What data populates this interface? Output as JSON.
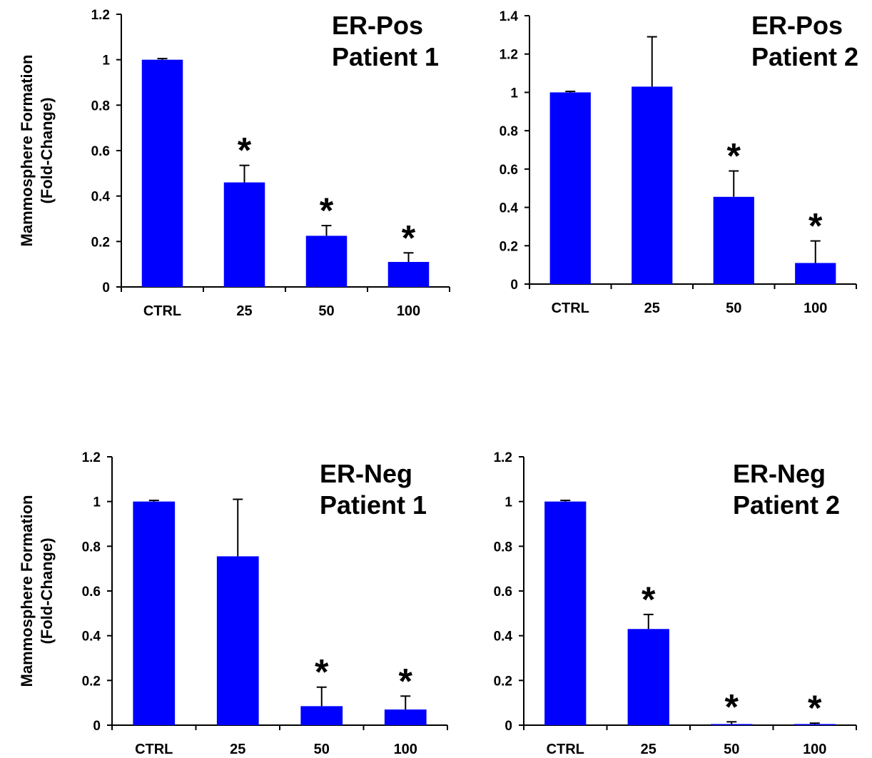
{
  "chart_data": [
    {
      "type": "bar",
      "title": [
        "ER-Pos",
        "Patient 1"
      ],
      "ylabel": [
        "Mammosphere Formation",
        "(Fold-Change)"
      ],
      "categories": [
        "CTRL",
        "25",
        "50",
        "100"
      ],
      "values": [
        1.0,
        0.46,
        0.225,
        0.11
      ],
      "errors": [
        0.005,
        0.075,
        0.045,
        0.04
      ],
      "significant": [
        false,
        true,
        true,
        true
      ],
      "marker": "*",
      "ylim": [
        0,
        1.2
      ],
      "yticks": [
        "0",
        "0.2",
        "0.4",
        "0.6",
        "0.8",
        "1",
        "1.2"
      ],
      "bar_color": "#0000ff"
    },
    {
      "type": "bar",
      "title": [
        "ER-Pos",
        "Patient 2"
      ],
      "ylabel": [],
      "categories": [
        "CTRL",
        "25",
        "50",
        "100"
      ],
      "values": [
        1.0,
        1.03,
        0.455,
        0.11
      ],
      "errors": [
        0.005,
        0.26,
        0.135,
        0.115
      ],
      "significant": [
        false,
        false,
        true,
        true
      ],
      "marker": "*",
      "ylim": [
        0,
        1.4
      ],
      "yticks": [
        "0",
        "0.2",
        "0.4",
        "0.6",
        "0.8",
        "1",
        "1.2",
        "1.4"
      ],
      "bar_color": "#0000ff"
    },
    {
      "type": "bar",
      "title": [
        "ER-Neg",
        "Patient 1"
      ],
      "ylabel": [
        "Mammosphere Formation",
        "(Fold-Change)"
      ],
      "categories": [
        "CTRL",
        "25",
        "50",
        "100"
      ],
      "values": [
        1.0,
        0.755,
        0.085,
        0.07
      ],
      "errors": [
        0.005,
        0.255,
        0.085,
        0.06
      ],
      "significant": [
        false,
        false,
        true,
        true
      ],
      "marker": "*",
      "ylim": [
        0,
        1.2
      ],
      "yticks": [
        "0",
        "0.2",
        "0.4",
        "0.6",
        "0.8",
        "1",
        "1.2"
      ],
      "bar_color": "#0000ff"
    },
    {
      "type": "bar",
      "title": [
        "ER-Neg",
        "Patient 2"
      ],
      "ylabel": [],
      "categories": [
        "CTRL",
        "25",
        "50",
        "100"
      ],
      "values": [
        1.0,
        0.43,
        0.005,
        0.005
      ],
      "errors": [
        0.005,
        0.065,
        0.01,
        0.004
      ],
      "significant": [
        false,
        true,
        true,
        true
      ],
      "marker": "*",
      "ylim": [
        0,
        1.2
      ],
      "yticks": [
        "0",
        "0.2",
        "0.4",
        "0.6",
        "0.8",
        "1",
        "1.2"
      ],
      "bar_color": "#0000ff"
    }
  ]
}
